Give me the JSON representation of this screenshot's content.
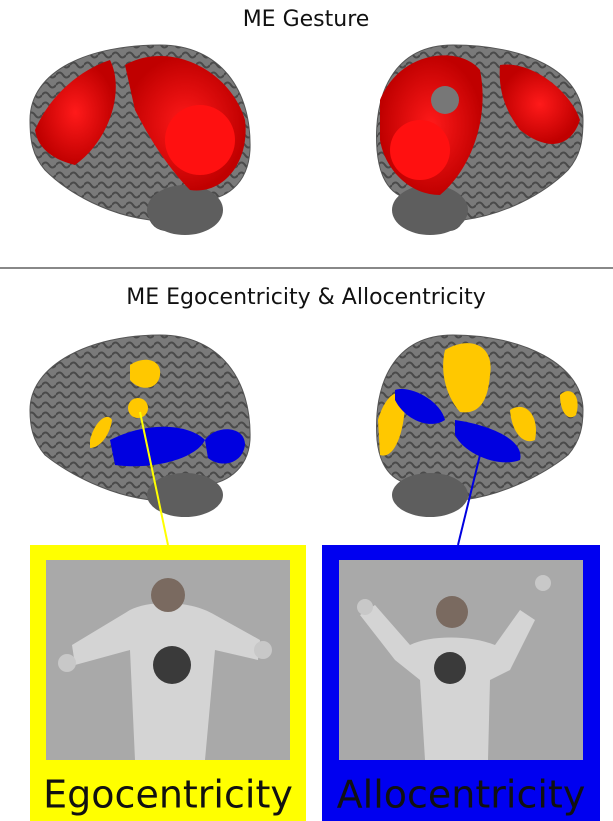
{
  "top_panel": {
    "title": "ME Gesture"
  },
  "bottom_panel": {
    "title": "ME Egocentricity & Allocentricity",
    "conditions": [
      {
        "label": "Egocentricity"
      },
      {
        "label": "Allocentricity"
      }
    ]
  }
}
